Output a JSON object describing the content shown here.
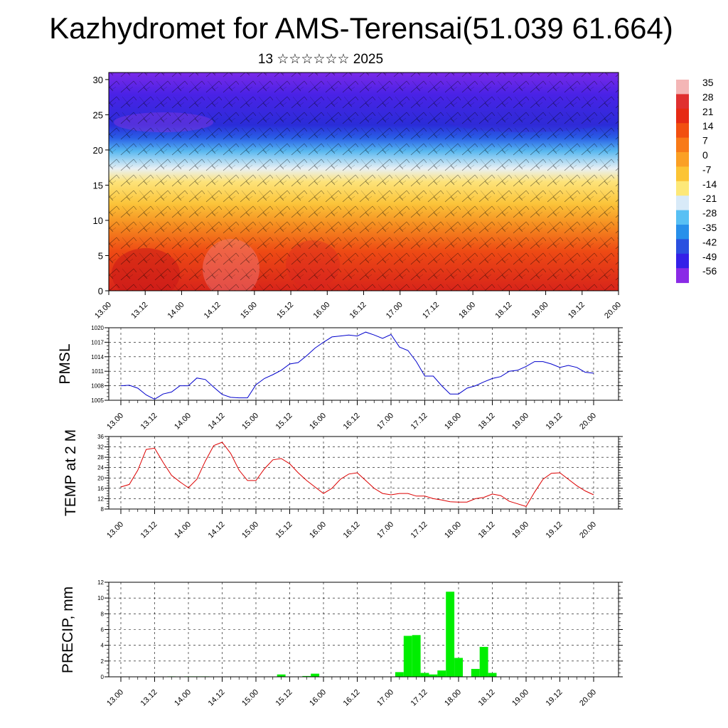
{
  "title": "Kazhydromet for AMS-Terensai(51.039 61.664)",
  "subtitle": "13 ☆☆☆☆☆☆ 2025",
  "colors": {
    "pmsl_line": "#0000cc",
    "temp_line": "#dd0000",
    "precip_bars": "#00ee00",
    "grid": "#000000"
  },
  "chart_data": [
    {
      "type": "heatmap",
      "id": "cross-section",
      "description_visible": "time-height cross-section with wind barbs",
      "ylim": [
        0,
        31
      ],
      "y_ticks": [
        "0",
        "5",
        "10",
        "15",
        "20",
        "25",
        "30"
      ],
      "x_ticks": [
        "13.00",
        "13.12",
        "14.00",
        "14.12",
        "15.00",
        "15.12",
        "16.00",
        "16.12",
        "17.00",
        "17.12",
        "18.00",
        "18.12",
        "19.00",
        "19.12",
        "20.00"
      ],
      "colorbar_labels": [
        "35",
        "28",
        "21",
        "14",
        "7",
        "0",
        "-7",
        "-14",
        "-21",
        "-28",
        "-35",
        "-42",
        "-49",
        "-56"
      ],
      "colorbar_colors": [
        "#f4b6b6",
        "#e03030",
        "#e62a14",
        "#f25010",
        "#f87a18",
        "#fba024",
        "#fcc434",
        "#fde878",
        "#d8eaf8",
        "#58c0f4",
        "#2890ea",
        "#2a50e0",
        "#3420e8",
        "#8a2ae6"
      ]
    },
    {
      "type": "line",
      "id": "pmsl",
      "ylabel": "PMSL",
      "ylim": [
        1005,
        1020
      ],
      "y_ticks": [
        "1005",
        "1008",
        "1011",
        "1014",
        "1017",
        "1020"
      ],
      "x_ticks": [
        "13.00",
        "13.12",
        "14.00",
        "14.12",
        "15.00",
        "15.12",
        "16.00",
        "16.12",
        "17.00",
        "17.12",
        "18.00",
        "18.12",
        "19.00",
        "19.12",
        "20.00"
      ],
      "values": [
        1008.0,
        1008.1,
        1007.5,
        1006.1,
        1005.2,
        1006.3,
        1006.7,
        1008.0,
        1008.0,
        1009.6,
        1009.3,
        1007.7,
        1006.2,
        1005.6,
        1005.5,
        1005.5,
        1008.2,
        1009.5,
        1010.3,
        1011.2,
        1012.5,
        1012.8,
        1014.2,
        1015.8,
        1017.0,
        1018.1,
        1018.3,
        1018.5,
        1018.3,
        1019.1,
        1018.5,
        1017.8,
        1018.6,
        1016.0,
        1015.3,
        1013.0,
        1010.0,
        1010.0,
        1008.0,
        1006.3,
        1006.3,
        1007.5,
        1008.0,
        1008.8,
        1009.5,
        1009.9,
        1011.0,
        1011.2,
        1012.0,
        1013.0,
        1013.0,
        1012.5,
        1011.8,
        1012.2,
        1011.8,
        1010.8,
        1010.6
      ]
    },
    {
      "type": "line",
      "id": "temp2m",
      "ylabel": "TEMP at 2 M",
      "ylim": [
        8,
        36
      ],
      "y_ticks": [
        "8",
        "12",
        "16",
        "20",
        "24",
        "28",
        "32",
        "36"
      ],
      "x_ticks": [
        "13.00",
        "13.12",
        "14.00",
        "14.12",
        "15.00",
        "15.12",
        "16.00",
        "16.12",
        "17.00",
        "17.12",
        "18.00",
        "18.12",
        "19.00",
        "19.12",
        "20.00"
      ],
      "values": [
        16.5,
        17.5,
        23.0,
        31.0,
        31.5,
        26.0,
        21.0,
        18.5,
        16.2,
        19.5,
        26.5,
        32.5,
        33.8,
        29.5,
        23.0,
        19.0,
        19.0,
        23.5,
        27.0,
        27.5,
        25.5,
        22.0,
        19.0,
        16.5,
        14.0,
        16.0,
        19.5,
        21.5,
        22.0,
        19.0,
        16.0,
        14.0,
        13.5,
        14.0,
        14.0,
        13.0,
        13.0,
        12.0,
        11.5,
        10.8,
        10.7,
        10.7,
        12.0,
        12.5,
        13.8,
        13.2,
        11.0,
        10.0,
        9.0,
        14.5,
        19.5,
        21.8,
        22.0,
        19.5,
        17.0,
        15.0,
        13.5
      ]
    },
    {
      "type": "bar",
      "id": "precip",
      "ylabel": "PRECIP, mm",
      "ylim": [
        0,
        12
      ],
      "y_ticks": [
        "0",
        "2",
        "4",
        "6",
        "8",
        "10",
        "12"
      ],
      "x_ticks": [
        "13.00",
        "13.12",
        "14.00",
        "14.12",
        "15.00",
        "15.12",
        "16.00",
        "16.12",
        "17.00",
        "17.12",
        "18.00",
        "18.12",
        "19.00",
        "19.12",
        "20.00"
      ],
      "values": [
        0,
        0,
        0,
        0,
        0,
        0,
        0.05,
        0,
        0.05,
        0.05,
        0.05,
        0,
        0,
        0,
        0,
        0,
        0,
        0,
        0,
        0.3,
        0,
        0,
        0.1,
        0.4,
        0,
        0,
        0,
        0,
        0,
        0,
        0,
        0,
        0,
        0.6,
        5.2,
        5.3,
        0.5,
        0.3,
        0.8,
        10.8,
        2.4,
        0.05,
        1.0,
        3.8,
        0.5,
        0,
        0,
        0,
        0,
        0,
        0,
        0,
        0,
        0,
        0,
        0,
        0
      ]
    }
  ]
}
